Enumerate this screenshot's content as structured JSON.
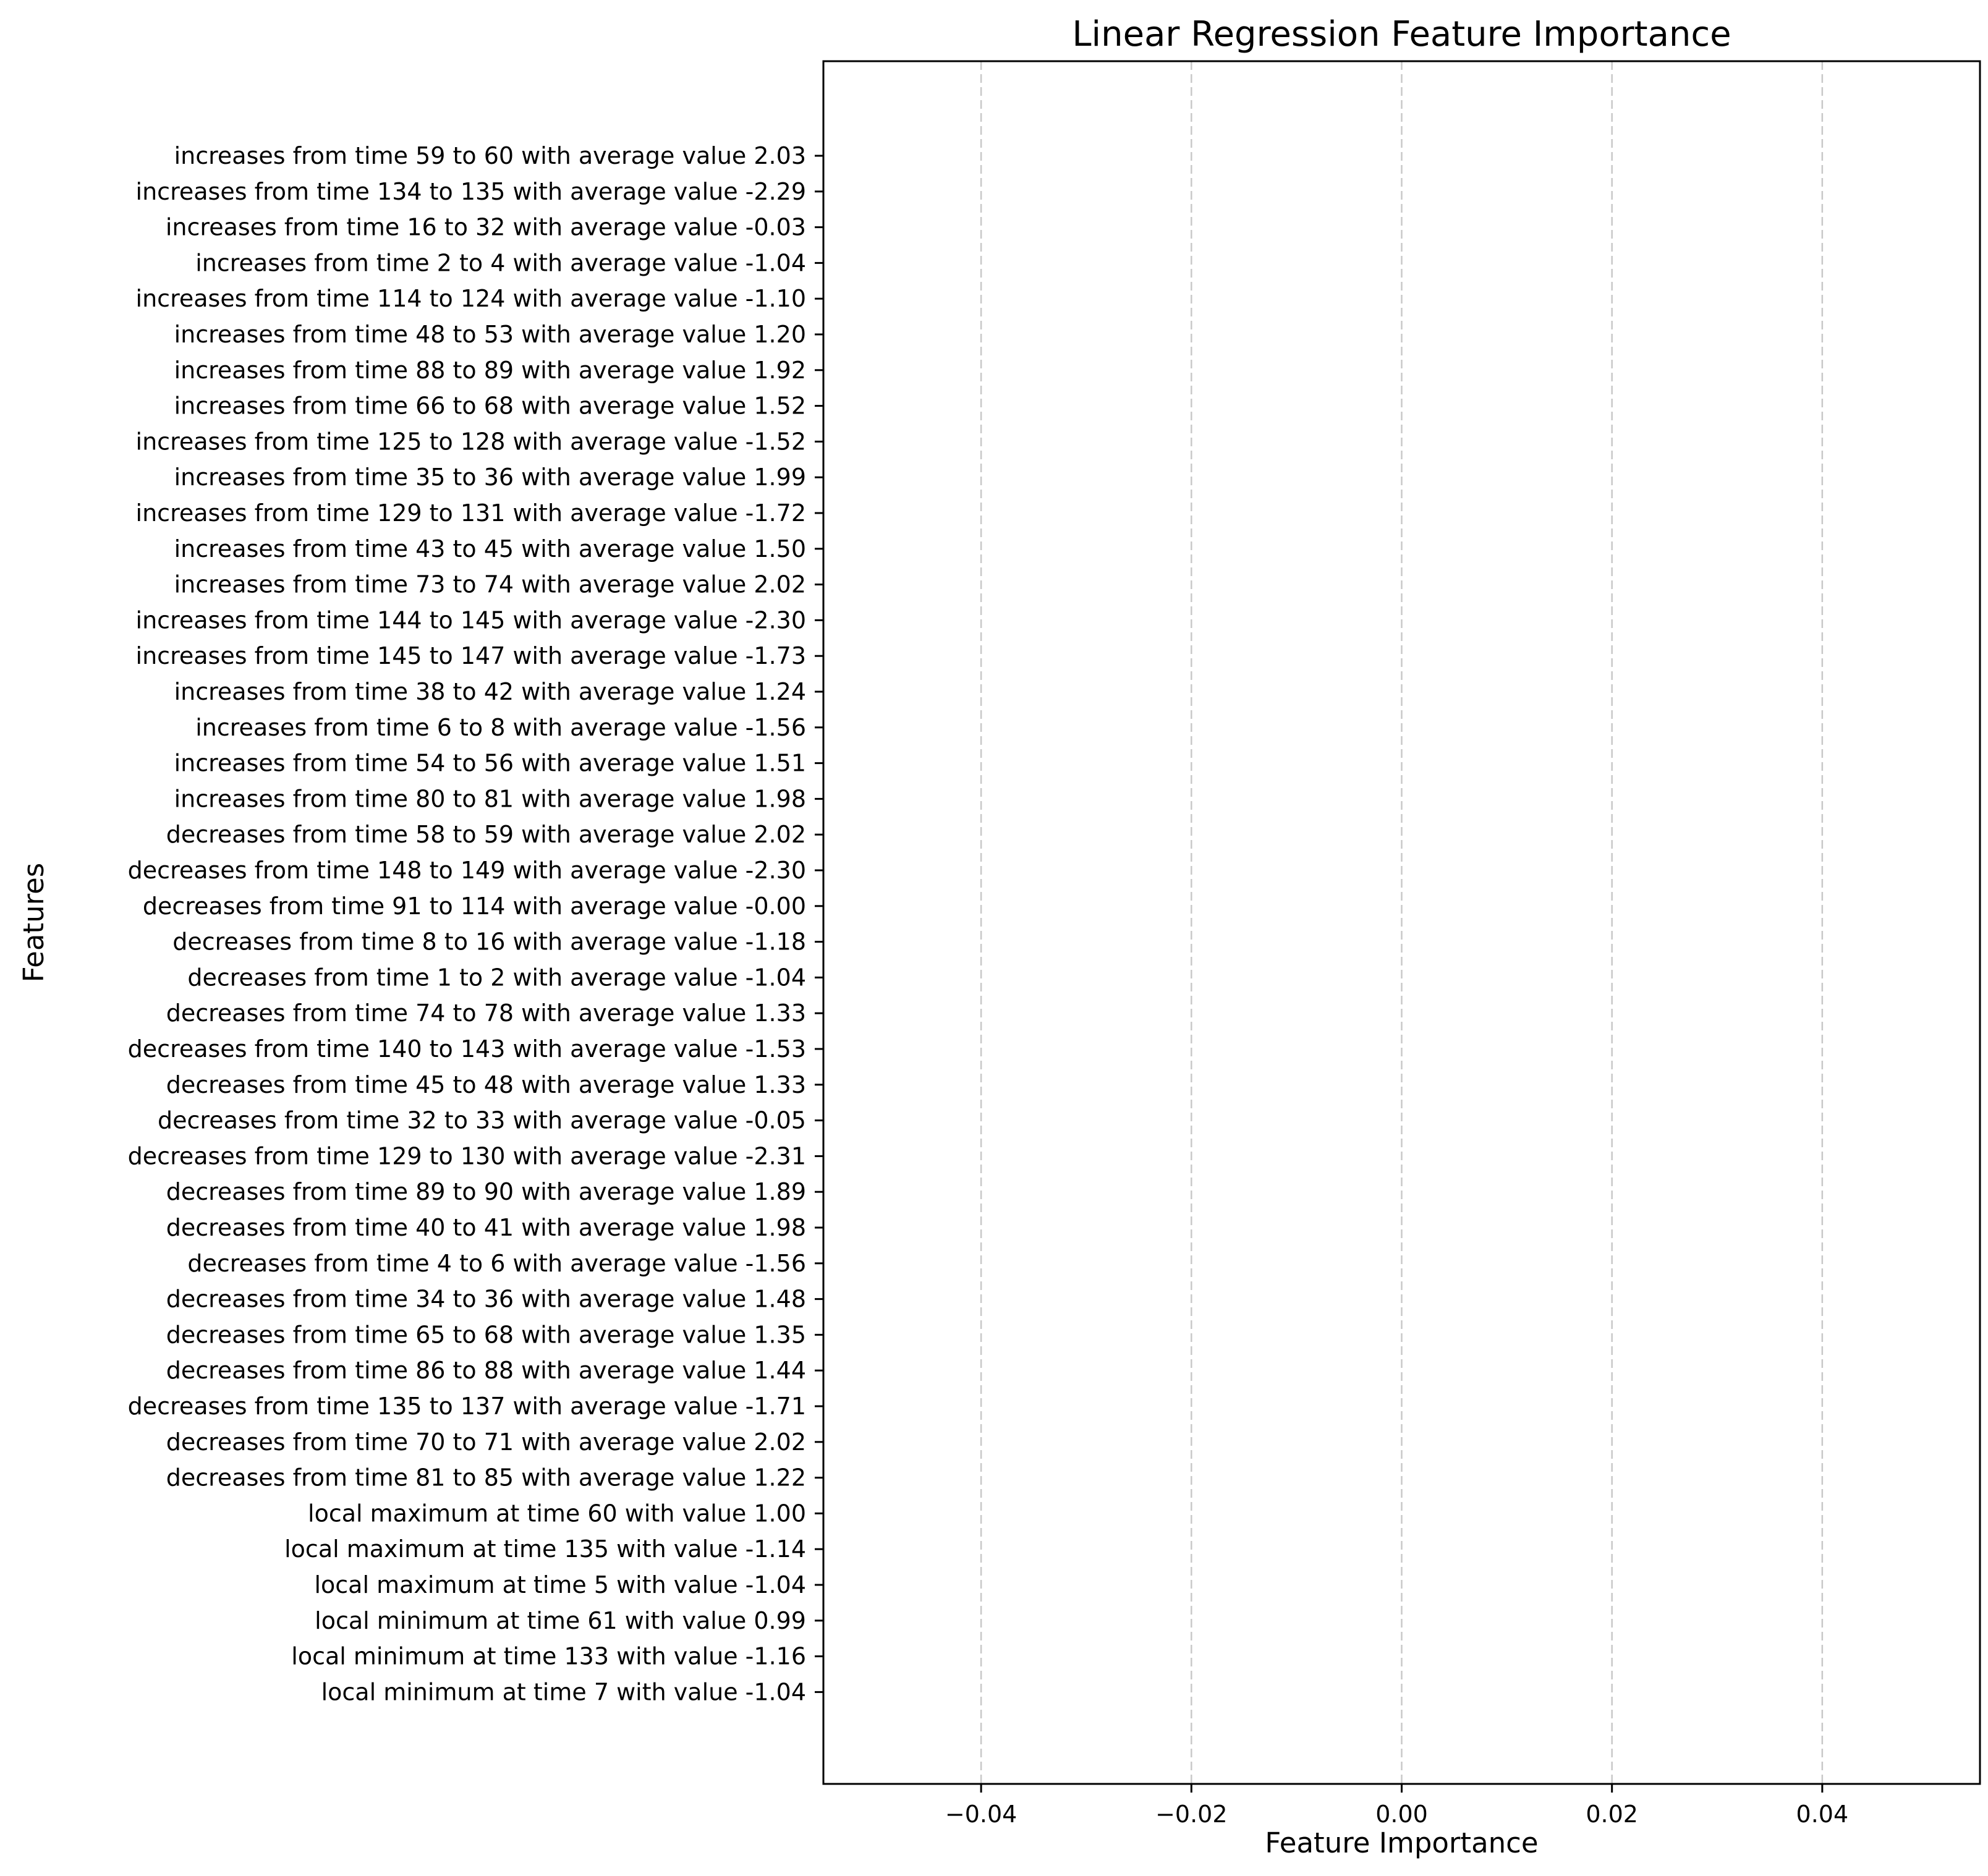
{
  "chart_data": {
    "type": "bar",
    "orientation": "horizontal",
    "title": "Linear Regression Feature Importance",
    "xlabel": "Feature Importance",
    "ylabel": "Features",
    "xlim": [
      -0.055,
      0.055
    ],
    "xticks": [
      -0.04,
      -0.02,
      0.0,
      0.02,
      0.04
    ],
    "xtick_labels": [
      "−0.04",
      "−0.02",
      "0.00",
      "0.02",
      "0.04"
    ],
    "grid": {
      "x": true,
      "y": false,
      "style": "dashed"
    },
    "colors": {
      "bar": "#1f77b4",
      "grid": "#c8c8c8",
      "axes": "#000000"
    },
    "categories": [
      "increases from time 59 to 60 with average value 2.03",
      "increases from time 134 to 135 with average value -2.29",
      "increases from time 16 to 32 with average value -0.03",
      "increases from time 2 to 4 with average value -1.04",
      "increases from time 114 to 124 with average value -1.10",
      "increases from time 48 to 53 with average value 1.20",
      "increases from time 88 to 89 with average value 1.92",
      "increases from time 66 to 68 with average value 1.52",
      "increases from time 125 to 128 with average value -1.52",
      "increases from time 35 to 36 with average value 1.99",
      "increases from time 129 to 131 with average value -1.72",
      "increases from time 43 to 45 with average value 1.50",
      "increases from time 73 to 74 with average value 2.02",
      "increases from time 144 to 145 with average value -2.30",
      "increases from time 145 to 147 with average value -1.73",
      "increases from time 38 to 42 with average value 1.24",
      "increases from time 6 to 8 with average value -1.56",
      "increases from time 54 to 56 with average value 1.51",
      "increases from time 80 to 81 with average value 1.98",
      "decreases from time 58 to 59 with average value 2.02",
      "decreases from time 148 to 149 with average value -2.30",
      "decreases from time 91 to 114 with average value -0.00",
      "decreases from time 8 to 16 with average value -1.18",
      "decreases from time 1 to 2 with average value -1.04",
      "decreases from time 74 to 78 with average value 1.33",
      "decreases from time 140 to 143 with average value -1.53",
      "decreases from time 45 to 48 with average value 1.33",
      "decreases from time 32 to 33 with average value -0.05",
      "decreases from time 129 to 130 with average value -2.31",
      "decreases from time 89 to 90 with average value 1.89",
      "decreases from time 40 to 41 with average value 1.98",
      "decreases from time 4 to 6 with average value -1.56",
      "decreases from time 34 to 36 with average value 1.48",
      "decreases from time 65 to 68 with average value 1.35",
      "decreases from time 86 to 88 with average value 1.44",
      "decreases from time 135 to 137 with average value -1.71",
      "decreases from time 70 to 71 with average value 2.02",
      "decreases from time 81 to 85 with average value 1.22",
      "local maximum at time 60 with value 1.00",
      "local maximum at time 135 with value -1.14",
      "local maximum at time 5 with value -1.04",
      "local minimum at time 61 with value 0.99",
      "local minimum at time 133 with value -1.16",
      "local minimum at time 7 with value -1.04"
    ],
    "values": [
      0,
      0,
      0,
      0,
      0,
      0,
      0,
      0,
      0,
      0,
      0,
      0,
      0,
      0,
      0,
      0,
      0,
      0,
      0,
      0,
      0,
      0,
      0,
      0,
      0,
      0,
      0,
      0,
      0,
      0,
      0,
      0,
      0,
      0,
      0,
      0,
      0,
      0,
      0,
      0,
      0,
      0,
      0,
      0
    ]
  }
}
